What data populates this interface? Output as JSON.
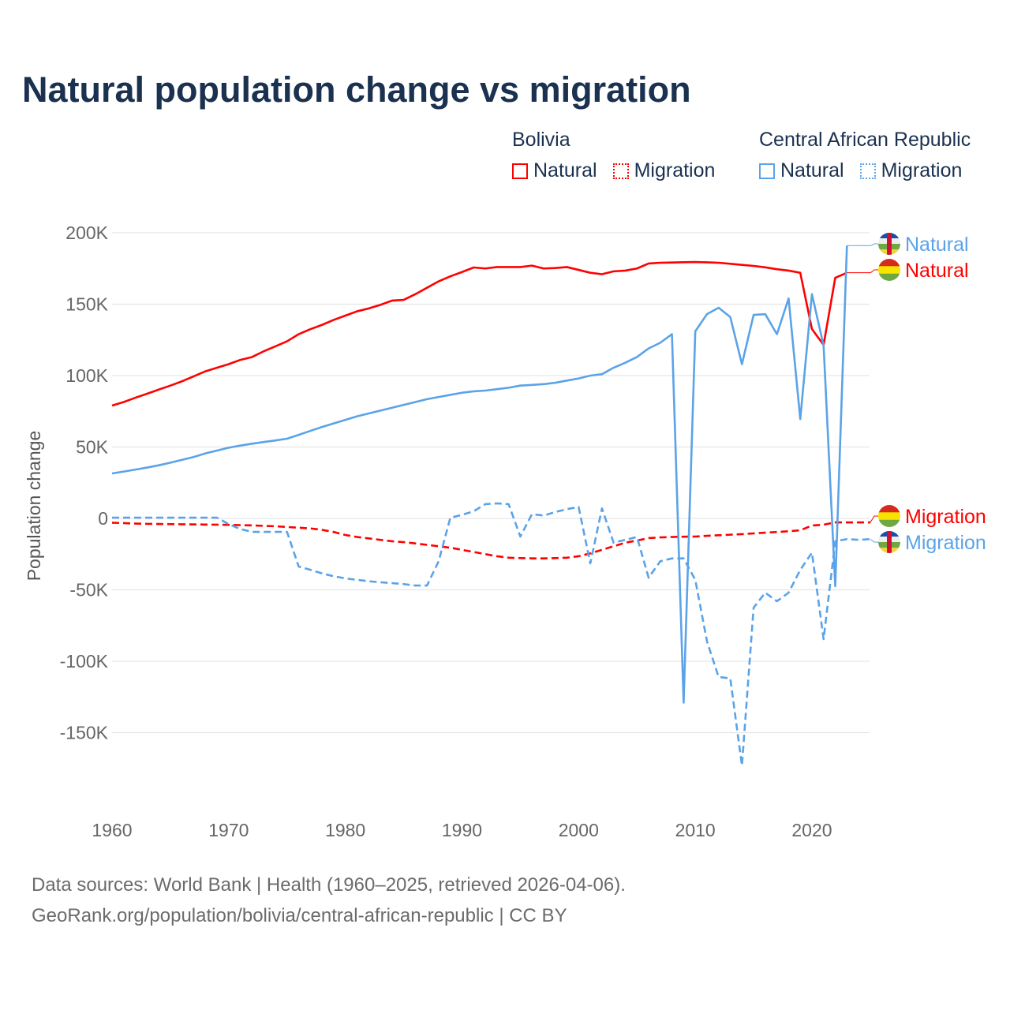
{
  "title": "Natural population change vs migration",
  "legend": {
    "groups": [
      {
        "country": "Bolivia",
        "items": [
          "Natural",
          "Migration"
        ],
        "color": "#ff0000"
      },
      {
        "country": "Central African Republic",
        "items": [
          "Natural",
          "Migration"
        ],
        "color": "#5ba3e8"
      }
    ]
  },
  "footer": {
    "line1": "Data sources: World Bank | Health (1960–2025, retrieved 2026-04-06).",
    "line2": "GeoRank.org/population/bolivia/central-african-republic | CC BY"
  },
  "chart_data": {
    "type": "line",
    "title": "Natural population change vs migration",
    "xlabel": "",
    "ylabel": "Population change",
    "xlim": [
      1960,
      2025
    ],
    "ylim": [
      -175000,
      200000
    ],
    "x_ticks": [
      1960,
      1970,
      1980,
      1990,
      2000,
      2010,
      2020
    ],
    "x_tick_labels": [
      "1960",
      "1970",
      "1980",
      "1990",
      "2000",
      "2010",
      "2020"
    ],
    "y_ticks": [
      200000,
      150000,
      100000,
      50000,
      0,
      -50000,
      -100000,
      -150000
    ],
    "y_tick_labels": [
      "200K",
      "150K",
      "100K",
      "50K",
      "0",
      "-50K",
      "-100K",
      "-150K"
    ],
    "grid": true,
    "legend_position": "top-right",
    "start_year": 1960,
    "unit": "thousands",
    "series": [
      {
        "name": "Bolivia Natural",
        "end_label": "Natural",
        "color": "#ff0000",
        "dash": false,
        "flag": "bolivia",
        "values": [
          79,
          81.5,
          84.5,
          87.3,
          90.2,
          93,
          96,
          99.5,
          103,
          105.5,
          108,
          111,
          113,
          117,
          120.5,
          124,
          129,
          132.5,
          135.5,
          139,
          142,
          145,
          147,
          149.5,
          152.5,
          153,
          157,
          161.5,
          166,
          169.5,
          172.5,
          175.7,
          175,
          176,
          176,
          176,
          177,
          175,
          175.3,
          176,
          174,
          172,
          171,
          173,
          173.5,
          175,
          178.5,
          179,
          179.2,
          179.4,
          179.5,
          179.3,
          179,
          178.3,
          177.5,
          176.8,
          175.8,
          174.5,
          173.5,
          172,
          132.6,
          121.5,
          168.5,
          172
        ]
      },
      {
        "name": "Bolivia Migration",
        "end_label": "Migration",
        "color": "#ff0000",
        "dash": true,
        "flag": "bolivia",
        "values": [
          -3,
          -3.3,
          -3.6,
          -3.8,
          -3.9,
          -4,
          -4.1,
          -4.2,
          -4.3,
          -4.4,
          -4.5,
          -4.7,
          -4.9,
          -5.2,
          -5.5,
          -6,
          -6.5,
          -7,
          -8,
          -9.5,
          -11.6,
          -13,
          -14,
          -15,
          -16,
          -16.6,
          -17.5,
          -18.5,
          -19.5,
          -20.5,
          -22,
          -23.5,
          -25,
          -26.5,
          -27.5,
          -27.8,
          -28,
          -28,
          -27.8,
          -27.5,
          -26.5,
          -24.5,
          -22,
          -19.5,
          -17,
          -15.5,
          -13.8,
          -13.3,
          -13,
          -12.8,
          -12.7,
          -12.2,
          -11.8,
          -11.4,
          -11,
          -10.5,
          -10,
          -9.5,
          -9,
          -8.3,
          -5,
          -4.4,
          -2.8,
          -2.8,
          -2.8,
          -2.8
        ]
      },
      {
        "name": "Central African Republic Natural",
        "end_label": "Natural",
        "color": "#5ba3e8",
        "dash": false,
        "flag": "car",
        "values": [
          31.5,
          32.8,
          34.2,
          35.6,
          37.2,
          39,
          41,
          43,
          45.5,
          47.5,
          49.5,
          51,
          52.3,
          53.5,
          54.6,
          55.8,
          58.5,
          61.3,
          64,
          66.5,
          69,
          71.5,
          73.5,
          75.5,
          77.5,
          79.5,
          81.5,
          83.5,
          85,
          86.5,
          88,
          89,
          89.5,
          90.5,
          91.5,
          93,
          93.5,
          94,
          95,
          96.5,
          98,
          100,
          101,
          105.5,
          109,
          113,
          119,
          123,
          129,
          -129,
          131,
          143,
          147.5,
          141,
          108,
          142.5,
          143,
          129,
          154,
          69.6,
          157,
          121,
          -47.5,
          191
        ]
      },
      {
        "name": "Central African Republic Migration",
        "end_label": "Migration",
        "color": "#5ba3e8",
        "dash": true,
        "flag": "car",
        "values": [
          0.5,
          0.5,
          0.5,
          0.5,
          0.5,
          0.5,
          0.5,
          0.5,
          0.5,
          0.5,
          -4,
          -7.5,
          -9.4,
          -9.4,
          -9.4,
          -9.4,
          -33.7,
          -36,
          -38.5,
          -40.5,
          -42,
          -43,
          -44,
          -44.7,
          -45.3,
          -46,
          -47,
          -47,
          -30,
          0.5,
          2.5,
          5,
          10,
          10.5,
          10,
          -12.7,
          3,
          2,
          4.5,
          6.5,
          8,
          -31.5,
          7,
          -17,
          -15,
          -13,
          -41.5,
          -30,
          -28,
          -28,
          -43,
          -86,
          -111,
          -112,
          -173,
          -62.5,
          -52,
          -58,
          -52,
          -36,
          -24,
          -84.5,
          -16,
          -14.5,
          -15,
          -14.5
        ]
      }
    ]
  }
}
